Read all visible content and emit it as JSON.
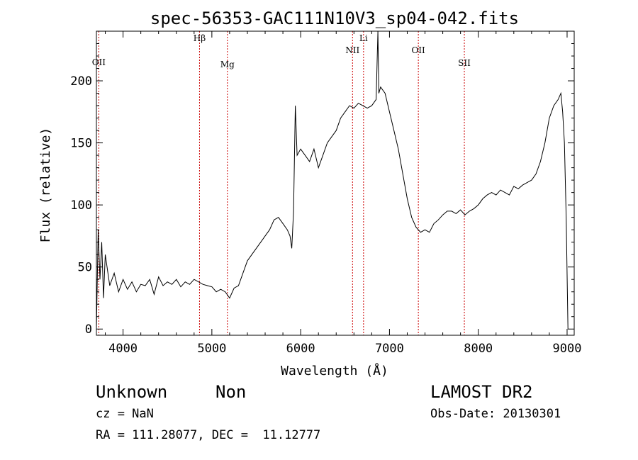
{
  "chart_data": {
    "type": "line",
    "title": "spec-56353-GAC111N10V3_sp04-042.fits",
    "xlabel": "Wavelength (Å)",
    "ylabel": "Flux (relative)",
    "xlim": [
      3700,
      9080
    ],
    "ylim": [
      -5,
      240
    ],
    "xticks": [
      4000,
      5000,
      6000,
      7000,
      8000,
      9000
    ],
    "yticks": [
      0,
      50,
      100,
      150,
      200
    ],
    "grid": false,
    "line_color": "#000000",
    "marker_color": "#cc0000",
    "series": [
      {
        "x": [
          3700,
          3720,
          3740,
          3760,
          3780,
          3800,
          3850,
          3900,
          3950,
          4000,
          4050,
          4100,
          4150,
          4200,
          4250,
          4300,
          4350,
          4400,
          4450,
          4500,
          4550,
          4600,
          4650,
          4700,
          4750,
          4800,
          4850,
          4900,
          4950,
          5000,
          5050,
          5100,
          5150,
          5200,
          5250,
          5300,
          5350,
          5400,
          5450,
          5500,
          5550,
          5600,
          5650,
          5700,
          5750,
          5800,
          5850,
          5880,
          5900,
          5920,
          5940,
          5960,
          6000,
          6050,
          6100,
          6150,
          6200,
          6250,
          6300,
          6350,
          6400,
          6450,
          6500,
          6550,
          6600,
          6650,
          6700,
          6750,
          6800,
          6850,
          6870,
          6880,
          6900,
          6950,
          7000,
          7050,
          7100,
          7150,
          7200,
          7250,
          7300,
          7350,
          7400,
          7450,
          7500,
          7550,
          7600,
          7650,
          7700,
          7750,
          7800,
          7850,
          7900,
          7950,
          8000,
          8050,
          8100,
          8150,
          8200,
          8250,
          8300,
          8350,
          8400,
          8450,
          8500,
          8550,
          8600,
          8650,
          8700,
          8750,
          8800,
          8850,
          8900,
          8930,
          8950,
          8970,
          8990,
          9010
        ],
        "y": [
          0,
          80,
          40,
          70,
          25,
          60,
          35,
          45,
          30,
          40,
          32,
          38,
          30,
          36,
          35,
          40,
          28,
          42,
          35,
          38,
          36,
          40,
          34,
          38,
          36,
          40,
          38,
          36,
          35,
          34,
          30,
          32,
          30,
          25,
          33,
          35,
          45,
          55,
          60,
          65,
          70,
          75,
          80,
          88,
          90,
          85,
          80,
          75,
          65,
          95,
          180,
          140,
          145,
          140,
          135,
          145,
          130,
          140,
          150,
          155,
          160,
          170,
          175,
          180,
          178,
          182,
          180,
          178,
          180,
          185,
          240,
          190,
          195,
          190,
          175,
          160,
          145,
          125,
          105,
          90,
          82,
          78,
          80,
          78,
          85,
          88,
          92,
          95,
          95,
          93,
          96,
          92,
          95,
          97,
          100,
          105,
          108,
          110,
          108,
          112,
          110,
          108,
          115,
          113,
          116,
          118,
          120,
          125,
          135,
          150,
          170,
          180,
          185,
          190,
          175,
          150,
          90,
          0
        ]
      }
    ],
    "line_markers": [
      {
        "label": "OII",
        "x": 3727
      },
      {
        "label": "Hβ",
        "x": 4861
      },
      {
        "label": "Mg",
        "x": 5175
      },
      {
        "label": "NII",
        "x": 6584
      },
      {
        "label": "Li",
        "x": 6708
      },
      {
        "label": "OII",
        "x": 7325
      },
      {
        "label": "SII",
        "x": 7843
      }
    ]
  },
  "info": {
    "classification": "Unknown",
    "subclass": "Non",
    "survey": "LAMOST DR2",
    "cz": "cz = NaN",
    "obs_date": "Obs-Date: 20130301",
    "coords": "RA = 111.28077, DEC =  11.12777"
  }
}
